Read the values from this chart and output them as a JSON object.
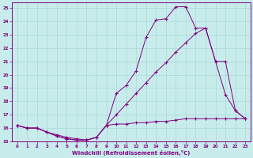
{
  "xlabel": "Windchill (Refroidissement éolien,°C)",
  "bg_color": "#c8ecec",
  "line_color": "#800080",
  "grid_color": "#a8d8d8",
  "xlim": [
    -0.5,
    23.5
  ],
  "ylim": [
    15,
    25.4
  ],
  "xticks": [
    0,
    1,
    2,
    3,
    4,
    5,
    6,
    7,
    8,
    9,
    10,
    11,
    12,
    13,
    14,
    15,
    16,
    17,
    18,
    19,
    20,
    21,
    22,
    23
  ],
  "yticks": [
    15,
    16,
    17,
    18,
    19,
    20,
    21,
    22,
    23,
    24,
    25
  ],
  "lines": [
    {
      "x": [
        0,
        1,
        2,
        3,
        4,
        5,
        6,
        7,
        8,
        9,
        10,
        11,
        12,
        13,
        14,
        15,
        16,
        17,
        18,
        19,
        20,
        21,
        22,
        23
      ],
      "y": [
        16.2,
        16.0,
        16.0,
        15.7,
        15.4,
        15.2,
        15.1,
        15.1,
        15.3,
        16.2,
        18.6,
        19.2,
        20.3,
        22.8,
        24.1,
        24.2,
        25.1,
        25.1,
        23.5,
        23.5,
        21.0,
        21.0,
        17.3,
        16.7
      ]
    },
    {
      "x": [
        0,
        1,
        2,
        3,
        4,
        5,
        6,
        7,
        8,
        9,
        10,
        11,
        12,
        13,
        14,
        15,
        16,
        17,
        18,
        19,
        20,
        21,
        22,
        23
      ],
      "y": [
        16.2,
        16.0,
        16.0,
        15.7,
        15.4,
        15.2,
        15.1,
        15.1,
        15.3,
        16.2,
        17.0,
        17.8,
        18.6,
        19.4,
        20.2,
        20.9,
        21.7,
        22.4,
        23.1,
        23.5,
        21.0,
        18.5,
        17.3,
        16.7
      ]
    },
    {
      "x": [
        0,
        1,
        2,
        3,
        4,
        5,
        6,
        7,
        8,
        9,
        10,
        11,
        12,
        13,
        14,
        15,
        16,
        17,
        18,
        19,
        20,
        21,
        22,
        23
      ],
      "y": [
        16.2,
        16.0,
        16.0,
        15.7,
        15.5,
        15.3,
        15.2,
        15.1,
        15.3,
        16.2,
        16.3,
        16.3,
        16.4,
        16.4,
        16.5,
        16.5,
        16.6,
        16.7,
        16.7,
        16.7,
        16.7,
        16.7,
        16.7,
        16.7
      ]
    }
  ]
}
